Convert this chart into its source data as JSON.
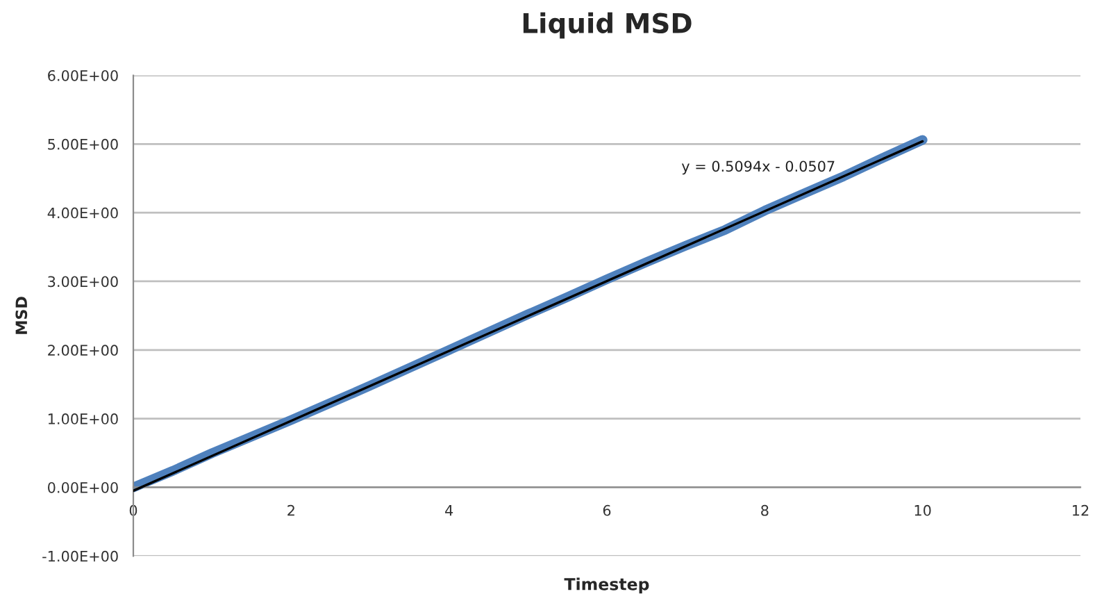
{
  "chart_data": {
    "type": "line",
    "title": "Liquid MSD",
    "xlabel": "Timestep",
    "ylabel": "MSD",
    "x": [
      0,
      0.5,
      1,
      1.5,
      2,
      2.5,
      3,
      3.5,
      4,
      4.5,
      5,
      5.5,
      6,
      6.5,
      7,
      7.5,
      8,
      8.5,
      9,
      9.5,
      10
    ],
    "series": [
      {
        "color": "#4f81bd",
        "values": [
          0,
          0.24,
          0.5,
          0.74,
          0.98,
          1.23,
          1.48,
          1.74,
          2.0,
          2.26,
          2.52,
          2.77,
          3.03,
          3.28,
          3.52,
          3.75,
          4.03,
          4.28,
          4.53,
          4.8,
          5.06
        ]
      },
      {
        "type": "line",
        "color": "#000000",
        "x": [
          0,
          10
        ],
        "values": [
          -0.05,
          5.04
        ]
      }
    ],
    "annotations": [
      "y = 0.5094x - 0.0507"
    ],
    "xlim": [
      0,
      12
    ],
    "xticks": [
      0,
      2,
      4,
      6,
      8,
      10,
      12
    ],
    "ylim": [
      -1,
      6
    ],
    "yticks": [
      {
        "value": -1,
        "label": "-1.00E+00"
      },
      {
        "value": 0,
        "label": "0.00E+00"
      },
      {
        "value": 1,
        "label": "1.00E+00"
      },
      {
        "value": 2,
        "label": "2.00E+00"
      },
      {
        "value": 3,
        "label": "3.00E+00"
      },
      {
        "value": 4,
        "label": "4.00E+00"
      },
      {
        "value": 5,
        "label": "5.00E+00"
      },
      {
        "value": 6,
        "label": "6.00E+00"
      }
    ],
    "grid": "y",
    "legend": false,
    "marker": "none",
    "line_style": "solid"
  }
}
